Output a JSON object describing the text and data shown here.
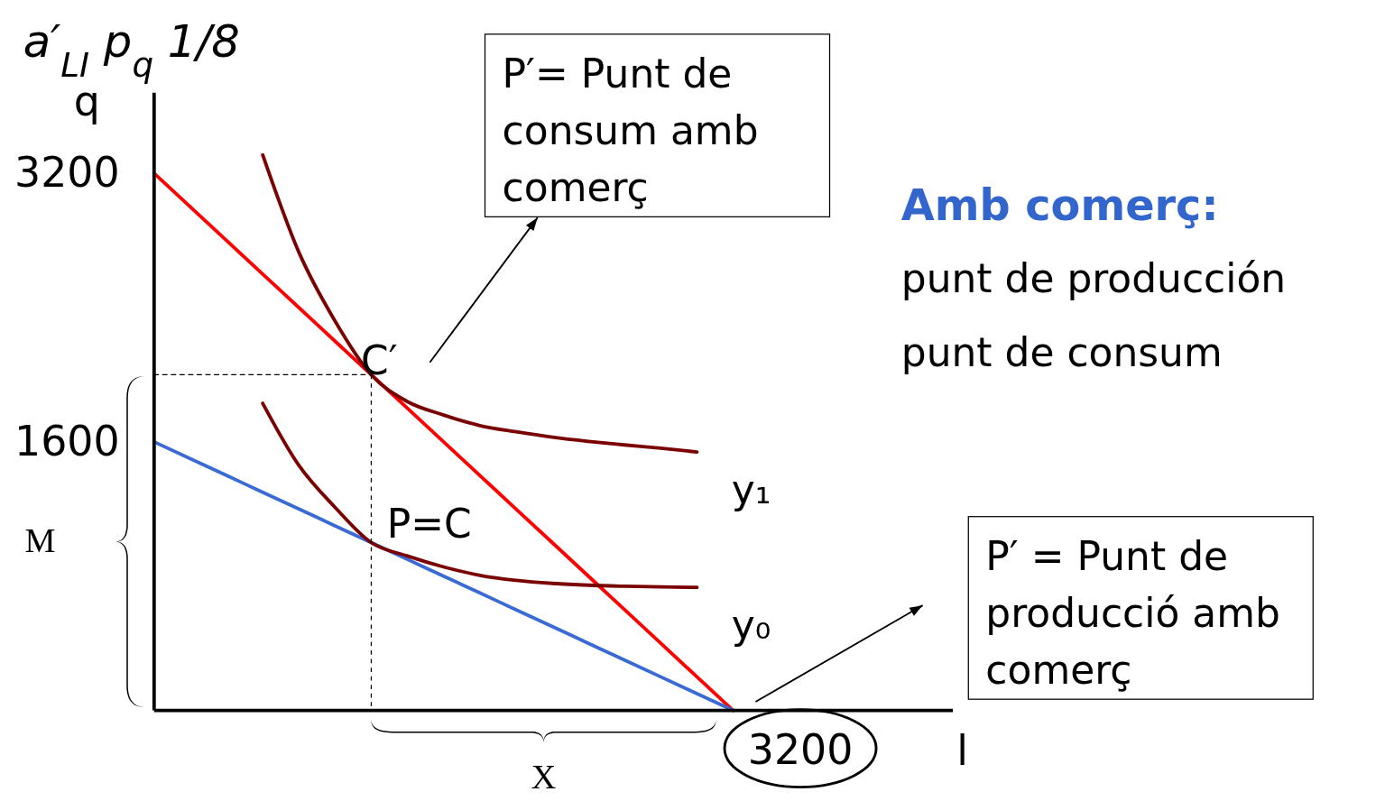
{
  "chart_data": {
    "type": "line",
    "title": "a′$_{LI}$   p$_{q}$   1/8",
    "xlabel": "l",
    "ylabel": "q",
    "categories": [
      null,
      null,
      null,
      null,
      null,
      null,
      null,
      null,
      null,
      null,
      null,
      null,
      null,
      null,
      null,
      null,
      null,
      null,
      null,
      null,
      null,
      null
    ],
    "ylim": [
      0,
      3680
    ],
    "yticks": [
      1600,
      3200
    ],
    "marker": "none",
    "series": [
      {
        "color": "#ff0000",
        "values": [
          3200,
          3000,
          2800,
          2600,
          2400,
          2200,
          2000,
          1800,
          1600,
          1400,
          1200,
          1000,
          800,
          600,
          400,
          200,
          0,
          null,
          null,
          null,
          null,
          null
        ]
      },
      {
        "color": "#3a6bd4",
        "values": [
          1600,
          1500,
          1400,
          1300,
          1200,
          1100,
          1000,
          900,
          800,
          700,
          600,
          500,
          400,
          300,
          200,
          100,
          0,
          null,
          null,
          null,
          null,
          null
        ]
      },
      {
        "color": "#7a0000",
        "values": [
          null,
          null,
          null,
          3310,
          2730,
          2320,
          2000,
          1840,
          1760,
          1697,
          1660,
          1628,
          1603,
          1582,
          1562,
          1540,
          null,
          null,
          null,
          null,
          null,
          null
        ]
      },
      {
        "color": "#7a0000",
        "values": [
          null,
          null,
          null,
          1830,
          1460,
          1210,
          1000,
          920,
          855,
          805,
          775,
          757,
          746,
          740,
          736,
          733,
          null,
          null,
          null,
          null,
          null,
          null
        ]
      },
      {
        "color": "#000000",
        "line_style": "dashed",
        "values": [
          2000,
          2000,
          2000,
          2000,
          2000,
          2000,
          2000,
          null,
          null,
          null,
          null,
          null,
          null,
          null,
          null,
          null,
          null,
          null,
          null,
          null,
          null,
          null
        ]
      }
    ],
    "annotations": [
      "C′",
      "P=C",
      "y₁",
      "y₀",
      "3200",
      "M",
      "X",
      "P′= Punt de consum amb comerç",
      "P′ = Punt de producció amb comerç",
      "Amb comerç:",
      "punt de producción",
      "punt de consum"
    ]
  }
}
